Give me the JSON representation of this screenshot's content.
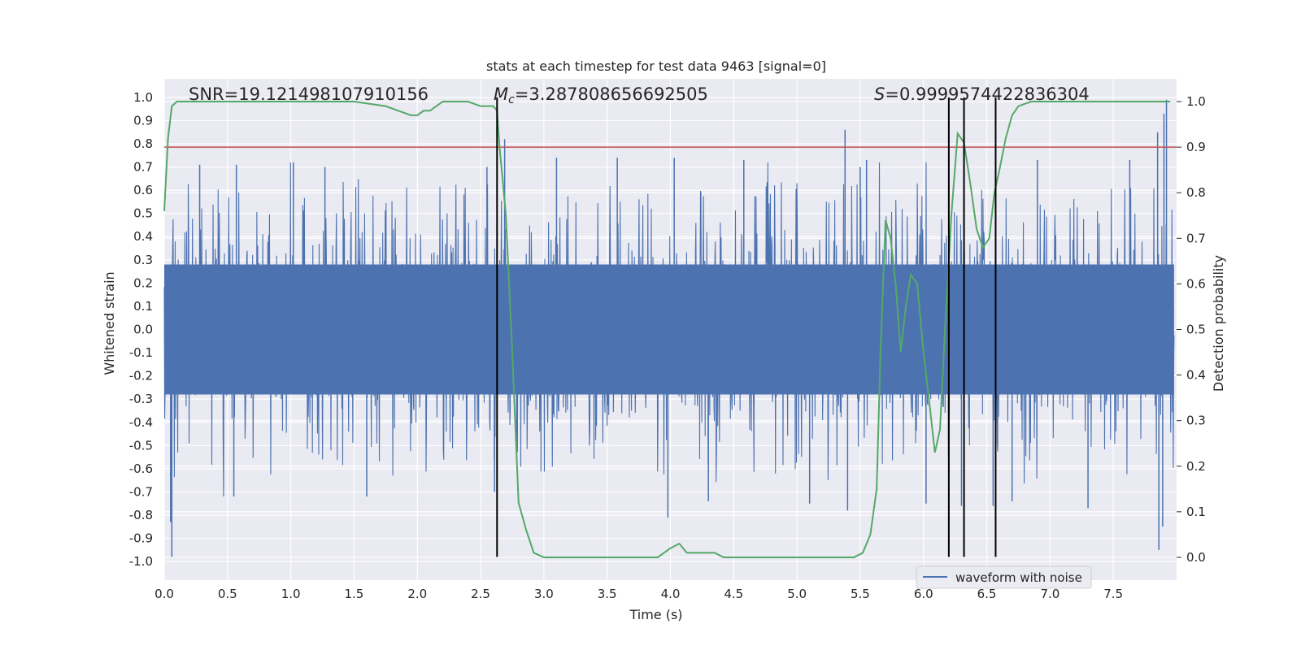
{
  "chart_data": {
    "type": "line",
    "title": "stats at each timestep for test data 9463 [signal=0]",
    "xlabel": "Time (s)",
    "ylabel": "Whitened strain",
    "y2label": "Detection probability",
    "xlim": [
      0.0,
      8.0
    ],
    "ylim": [
      -1.08,
      1.08
    ],
    "y2lim": [
      -0.05,
      1.05
    ],
    "xticks": [
      "0.0",
      "0.5",
      "1.0",
      "1.5",
      "2.0",
      "2.5",
      "3.0",
      "3.5",
      "4.0",
      "4.5",
      "5.0",
      "5.5",
      "6.0",
      "6.5",
      "7.0",
      "7.5"
    ],
    "yticks": [
      "1.0",
      "0.9",
      "0.8",
      "0.7",
      "0.6",
      "0.5",
      "0.4",
      "0.3",
      "0.2",
      "0.1",
      "0.0",
      "-0.1",
      "-0.2",
      "-0.3",
      "-0.4",
      "-0.5",
      "-0.6",
      "-0.7",
      "-0.8",
      "-0.9",
      "-1.0"
    ],
    "y2ticks": [
      "1.0",
      "0.9",
      "0.8",
      "0.7",
      "0.6",
      "0.5",
      "0.4",
      "0.3",
      "0.2",
      "0.1",
      "0.0"
    ],
    "grid": true,
    "legend": {
      "placement": "lower-right",
      "entries": [
        "waveform with noise"
      ]
    },
    "annotations": {
      "snr": "SNR=19.121498107910156",
      "mc_symbol": "M",
      "mc_sub": "c",
      "mc_value": "=3.287808656692505",
      "s_symbol": "S",
      "s_value": "=0.9999574422836304"
    },
    "series": [
      {
        "name": "waveform with noise",
        "kind": "noise-band",
        "color": "#4c72b0",
        "x_range": [
          0.0,
          7.98
        ],
        "core_amplitude": 0.28,
        "typical_peak": 0.55,
        "notable_peaks": [
          [
            0.06,
            -0.98
          ],
          [
            0.05,
            -0.83
          ],
          [
            0.28,
            0.71
          ],
          [
            0.55,
            -0.72
          ],
          [
            0.57,
            0.71
          ],
          [
            1.02,
            0.72
          ],
          [
            1.27,
            0.7
          ],
          [
            1.6,
            -0.72
          ],
          [
            2.55,
            0.7
          ],
          [
            2.61,
            -0.7
          ],
          [
            2.69,
            0.82
          ],
          [
            3.1,
            0.74
          ],
          [
            3.58,
            0.74
          ],
          [
            4.03,
            0.74
          ],
          [
            4.3,
            -0.74
          ],
          [
            4.58,
            0.73
          ],
          [
            5.38,
            0.86
          ],
          [
            5.1,
            -0.75
          ],
          [
            5.4,
            -0.78
          ],
          [
            5.55,
            0.73
          ],
          [
            6.02,
            -0.75
          ],
          [
            6.3,
            -0.76
          ],
          [
            6.55,
            -0.76
          ],
          [
            6.7,
            -0.74
          ],
          [
            6.9,
            0.73
          ],
          [
            7.3,
            -0.77
          ],
          [
            7.63,
            0.73
          ],
          [
            7.86,
            -0.95
          ],
          [
            7.89,
            -0.85
          ],
          [
            7.9,
            0.93
          ],
          [
            7.92,
            0.99
          ],
          [
            7.85,
            0.85
          ],
          [
            3.98,
            -0.81
          ],
          [
            5.5,
            0.7
          ]
        ]
      },
      {
        "name": "",
        "axis": "right",
        "color": "#55a868",
        "x": [
          0.0,
          0.03,
          0.06,
          0.1,
          0.2,
          0.5,
          1.0,
          1.5,
          1.75,
          1.85,
          1.95,
          2.0,
          2.05,
          2.1,
          2.15,
          2.2,
          2.3,
          2.4,
          2.5,
          2.55,
          2.6,
          2.63,
          2.65,
          2.7,
          2.75,
          2.8,
          2.86,
          2.92,
          3.0,
          3.2,
          3.4,
          3.6,
          3.8,
          3.9,
          4.0,
          4.07,
          4.13,
          4.2,
          4.3,
          4.35,
          4.42,
          4.6,
          4.8,
          5.0,
          5.3,
          5.45,
          5.52,
          5.58,
          5.63,
          5.66,
          5.7,
          5.74,
          5.78,
          5.82,
          5.86,
          5.9,
          5.95,
          6.0,
          6.05,
          6.09,
          6.13,
          6.17,
          6.22,
          6.27,
          6.32,
          6.37,
          6.42,
          6.47,
          6.52,
          6.56,
          6.6,
          6.65,
          6.7,
          6.75,
          6.85,
          7.0,
          7.5,
          7.95
        ],
        "y": [
          0.76,
          0.92,
          0.99,
          1.0,
          1.0,
          1.0,
          1.0,
          1.0,
          0.99,
          0.98,
          0.97,
          0.97,
          0.98,
          0.98,
          0.99,
          1.0,
          1.0,
          1.0,
          0.99,
          0.99,
          0.99,
          0.98,
          0.9,
          0.75,
          0.45,
          0.12,
          0.06,
          0.01,
          0.0,
          0.0,
          0.0,
          0.0,
          0.0,
          0.0,
          0.02,
          0.03,
          0.01,
          0.01,
          0.01,
          0.01,
          0.0,
          0.0,
          0.0,
          0.0,
          0.0,
          0.0,
          0.01,
          0.05,
          0.15,
          0.45,
          0.74,
          0.7,
          0.6,
          0.45,
          0.55,
          0.62,
          0.6,
          0.45,
          0.33,
          0.23,
          0.28,
          0.5,
          0.75,
          0.93,
          0.91,
          0.82,
          0.72,
          0.68,
          0.7,
          0.8,
          0.85,
          0.92,
          0.97,
          0.99,
          1.0,
          1.0,
          1.0,
          1.0
        ]
      }
    ],
    "reference_lines": {
      "horizontal": {
        "axis": "right",
        "value": 0.9,
        "color": "#c44e52"
      },
      "vertical": {
        "color": "#000000",
        "x": [
          2.63,
          6.2,
          6.32,
          6.57
        ],
        "y_from": -0.98,
        "y_to": 1.0
      }
    }
  }
}
